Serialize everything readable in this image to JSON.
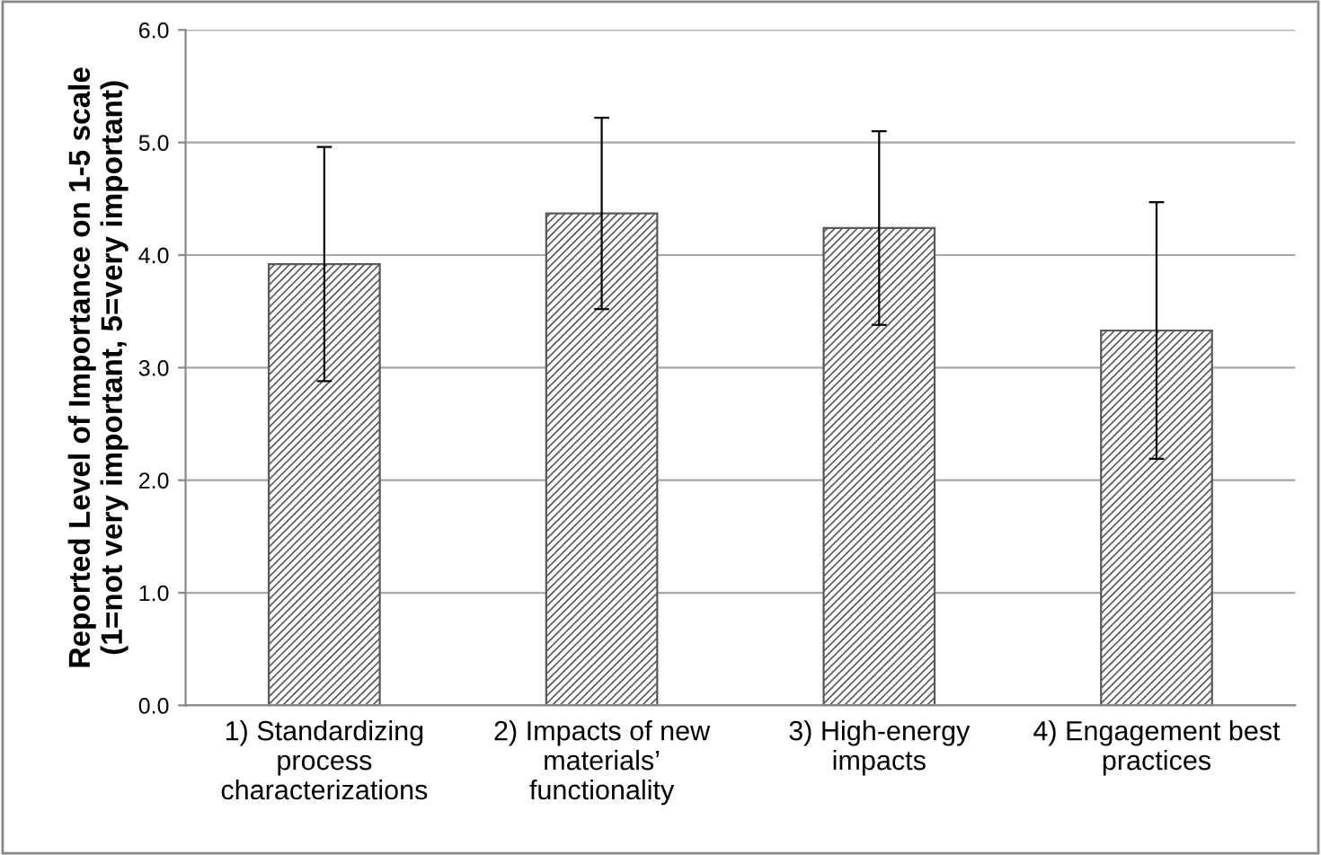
{
  "chart_data": {
    "type": "bar",
    "ylabel": "Reported Level of Importance on 1-5 scale\n(1=not very important, 5=very important)",
    "categories": [
      "1) Standardizing\nprocess\ncharacterizations",
      "2) Impacts of new\nmaterials’\nfunctionality",
      "3) High-energy\nimpacts",
      "4) Engagement best\npractices"
    ],
    "values": [
      3.92,
      4.37,
      4.24,
      3.33
    ],
    "errors": [
      1.04,
      0.85,
      0.86,
      1.14
    ],
    "color": "#595959",
    "ylim": [
      0,
      6
    ],
    "yticks": [
      {
        "value": 0,
        "label": "0.0"
      },
      {
        "value": 1,
        "label": "1.0"
      },
      {
        "value": 2,
        "label": "2.0"
      },
      {
        "value": 3,
        "label": "3.0"
      },
      {
        "value": 4,
        "label": "4.0"
      },
      {
        "value": 5,
        "label": "5.0"
      },
      {
        "value": 6,
        "label": "6.0"
      }
    ],
    "grid": "y"
  }
}
